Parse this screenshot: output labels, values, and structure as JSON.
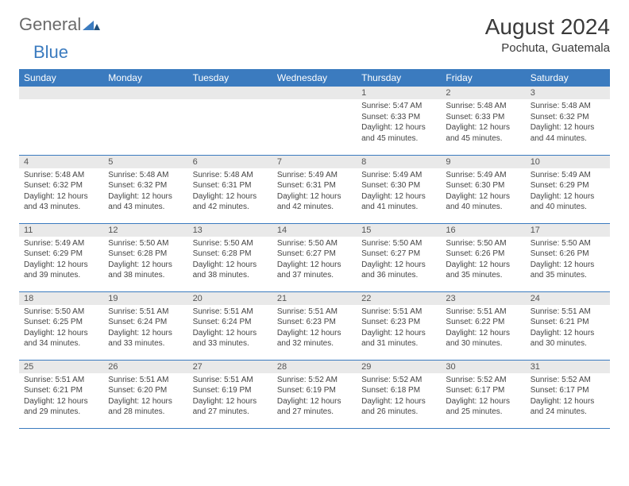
{
  "brand": {
    "part1": "General",
    "part2": "Blue"
  },
  "title": "August 2024",
  "location": "Pochuta, Guatemala",
  "colors": {
    "header_bg": "#3b7bbf",
    "header_text": "#ffffff",
    "daynum_bg": "#e9e9e9",
    "border": "#3b7bbf",
    "logo_gray": "#6a6a6a",
    "logo_blue": "#3b7bbf",
    "page_bg": "#ffffff",
    "body_text": "#444444"
  },
  "headers": [
    "Sunday",
    "Monday",
    "Tuesday",
    "Wednesday",
    "Thursday",
    "Friday",
    "Saturday"
  ],
  "weeks": [
    [
      {
        "n": "",
        "sr": "",
        "ss": "",
        "dl": ""
      },
      {
        "n": "",
        "sr": "",
        "ss": "",
        "dl": ""
      },
      {
        "n": "",
        "sr": "",
        "ss": "",
        "dl": ""
      },
      {
        "n": "",
        "sr": "",
        "ss": "",
        "dl": ""
      },
      {
        "n": "1",
        "sr": "Sunrise: 5:47 AM",
        "ss": "Sunset: 6:33 PM",
        "dl": "Daylight: 12 hours and 45 minutes."
      },
      {
        "n": "2",
        "sr": "Sunrise: 5:48 AM",
        "ss": "Sunset: 6:33 PM",
        "dl": "Daylight: 12 hours and 45 minutes."
      },
      {
        "n": "3",
        "sr": "Sunrise: 5:48 AM",
        "ss": "Sunset: 6:32 PM",
        "dl": "Daylight: 12 hours and 44 minutes."
      }
    ],
    [
      {
        "n": "4",
        "sr": "Sunrise: 5:48 AM",
        "ss": "Sunset: 6:32 PM",
        "dl": "Daylight: 12 hours and 43 minutes."
      },
      {
        "n": "5",
        "sr": "Sunrise: 5:48 AM",
        "ss": "Sunset: 6:32 PM",
        "dl": "Daylight: 12 hours and 43 minutes."
      },
      {
        "n": "6",
        "sr": "Sunrise: 5:48 AM",
        "ss": "Sunset: 6:31 PM",
        "dl": "Daylight: 12 hours and 42 minutes."
      },
      {
        "n": "7",
        "sr": "Sunrise: 5:49 AM",
        "ss": "Sunset: 6:31 PM",
        "dl": "Daylight: 12 hours and 42 minutes."
      },
      {
        "n": "8",
        "sr": "Sunrise: 5:49 AM",
        "ss": "Sunset: 6:30 PM",
        "dl": "Daylight: 12 hours and 41 minutes."
      },
      {
        "n": "9",
        "sr": "Sunrise: 5:49 AM",
        "ss": "Sunset: 6:30 PM",
        "dl": "Daylight: 12 hours and 40 minutes."
      },
      {
        "n": "10",
        "sr": "Sunrise: 5:49 AM",
        "ss": "Sunset: 6:29 PM",
        "dl": "Daylight: 12 hours and 40 minutes."
      }
    ],
    [
      {
        "n": "11",
        "sr": "Sunrise: 5:49 AM",
        "ss": "Sunset: 6:29 PM",
        "dl": "Daylight: 12 hours and 39 minutes."
      },
      {
        "n": "12",
        "sr": "Sunrise: 5:50 AM",
        "ss": "Sunset: 6:28 PM",
        "dl": "Daylight: 12 hours and 38 minutes."
      },
      {
        "n": "13",
        "sr": "Sunrise: 5:50 AM",
        "ss": "Sunset: 6:28 PM",
        "dl": "Daylight: 12 hours and 38 minutes."
      },
      {
        "n": "14",
        "sr": "Sunrise: 5:50 AM",
        "ss": "Sunset: 6:27 PM",
        "dl": "Daylight: 12 hours and 37 minutes."
      },
      {
        "n": "15",
        "sr": "Sunrise: 5:50 AM",
        "ss": "Sunset: 6:27 PM",
        "dl": "Daylight: 12 hours and 36 minutes."
      },
      {
        "n": "16",
        "sr": "Sunrise: 5:50 AM",
        "ss": "Sunset: 6:26 PM",
        "dl": "Daylight: 12 hours and 35 minutes."
      },
      {
        "n": "17",
        "sr": "Sunrise: 5:50 AM",
        "ss": "Sunset: 6:26 PM",
        "dl": "Daylight: 12 hours and 35 minutes."
      }
    ],
    [
      {
        "n": "18",
        "sr": "Sunrise: 5:50 AM",
        "ss": "Sunset: 6:25 PM",
        "dl": "Daylight: 12 hours and 34 minutes."
      },
      {
        "n": "19",
        "sr": "Sunrise: 5:51 AM",
        "ss": "Sunset: 6:24 PM",
        "dl": "Daylight: 12 hours and 33 minutes."
      },
      {
        "n": "20",
        "sr": "Sunrise: 5:51 AM",
        "ss": "Sunset: 6:24 PM",
        "dl": "Daylight: 12 hours and 33 minutes."
      },
      {
        "n": "21",
        "sr": "Sunrise: 5:51 AM",
        "ss": "Sunset: 6:23 PM",
        "dl": "Daylight: 12 hours and 32 minutes."
      },
      {
        "n": "22",
        "sr": "Sunrise: 5:51 AM",
        "ss": "Sunset: 6:23 PM",
        "dl": "Daylight: 12 hours and 31 minutes."
      },
      {
        "n": "23",
        "sr": "Sunrise: 5:51 AM",
        "ss": "Sunset: 6:22 PM",
        "dl": "Daylight: 12 hours and 30 minutes."
      },
      {
        "n": "24",
        "sr": "Sunrise: 5:51 AM",
        "ss": "Sunset: 6:21 PM",
        "dl": "Daylight: 12 hours and 30 minutes."
      }
    ],
    [
      {
        "n": "25",
        "sr": "Sunrise: 5:51 AM",
        "ss": "Sunset: 6:21 PM",
        "dl": "Daylight: 12 hours and 29 minutes."
      },
      {
        "n": "26",
        "sr": "Sunrise: 5:51 AM",
        "ss": "Sunset: 6:20 PM",
        "dl": "Daylight: 12 hours and 28 minutes."
      },
      {
        "n": "27",
        "sr": "Sunrise: 5:51 AM",
        "ss": "Sunset: 6:19 PM",
        "dl": "Daylight: 12 hours and 27 minutes."
      },
      {
        "n": "28",
        "sr": "Sunrise: 5:52 AM",
        "ss": "Sunset: 6:19 PM",
        "dl": "Daylight: 12 hours and 27 minutes."
      },
      {
        "n": "29",
        "sr": "Sunrise: 5:52 AM",
        "ss": "Sunset: 6:18 PM",
        "dl": "Daylight: 12 hours and 26 minutes."
      },
      {
        "n": "30",
        "sr": "Sunrise: 5:52 AM",
        "ss": "Sunset: 6:17 PM",
        "dl": "Daylight: 12 hours and 25 minutes."
      },
      {
        "n": "31",
        "sr": "Sunrise: 5:52 AM",
        "ss": "Sunset: 6:17 PM",
        "dl": "Daylight: 12 hours and 24 minutes."
      }
    ]
  ]
}
